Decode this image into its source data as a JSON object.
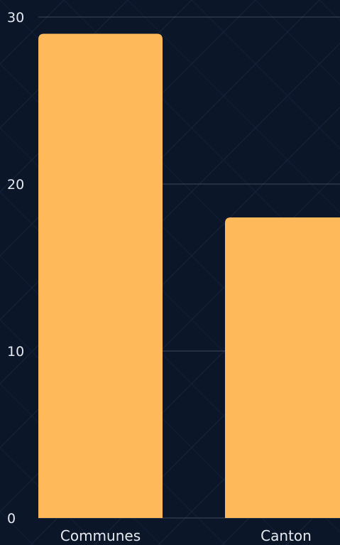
{
  "colors": {
    "background": "#0b1628",
    "bar": "#fdb95a",
    "grid": "#3a4a5c",
    "text": "#e6e9ef",
    "pattern": "#16243a"
  },
  "chart_data": {
    "type": "bar",
    "categories": [
      "Communes",
      "Canton"
    ],
    "values": [
      29,
      18
    ],
    "title": "",
    "xlabel": "",
    "ylabel": "",
    "ylim": [
      0,
      30
    ],
    "yticks": [
      0,
      10,
      20,
      30
    ],
    "grid": true,
    "legend": "none"
  }
}
